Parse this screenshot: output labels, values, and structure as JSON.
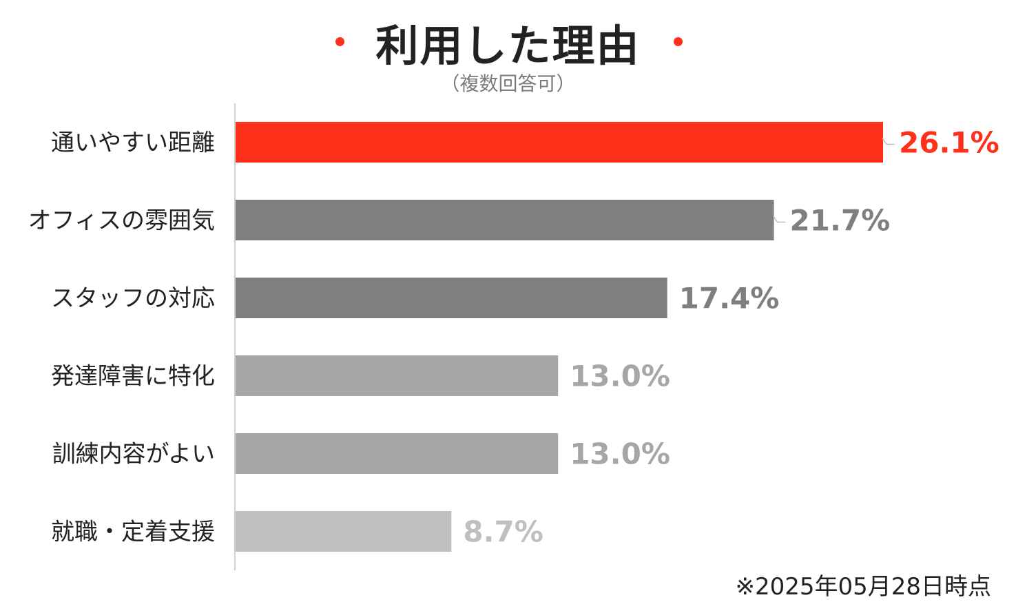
{
  "title": "利用した理由",
  "subtitle": "（複数回答可）",
  "footnote": "※2025年05月28日時点",
  "colors": {
    "accent": "#ff3019",
    "dark_gray": "#7f7f7f",
    "mid_gray": "#a6a6a6",
    "light_gray": "#bfbfbf",
    "axis": "#d0d0d0"
  },
  "chart_data": {
    "type": "bar",
    "orientation": "horizontal",
    "title": "利用した理由",
    "subtitle": "（複数回答可）",
    "categories": [
      "通いやすい距離",
      "オフィスの雰囲気",
      "スタッフの対応",
      "発達障害に特化",
      "訓練内容がよい",
      "就職・定着支援"
    ],
    "values": [
      26.1,
      21.7,
      17.4,
      13.0,
      13.0,
      8.7
    ],
    "data_labels": [
      "26.1%",
      "21.7%",
      "17.4%",
      "13.0%",
      "13.0%",
      "8.7%"
    ],
    "bar_colors": [
      "#ff3019",
      "#7f7f7f",
      "#7f7f7f",
      "#a6a6a6",
      "#a6a6a6",
      "#bfbfbf"
    ],
    "label_colors": [
      "#ff3019",
      "#7f7f7f",
      "#7f7f7f",
      "#a6a6a6",
      "#a6a6a6",
      "#bfbfbf"
    ],
    "xlim": [
      0,
      26.1
    ],
    "unit": "%",
    "grid": false,
    "legend": "none"
  }
}
